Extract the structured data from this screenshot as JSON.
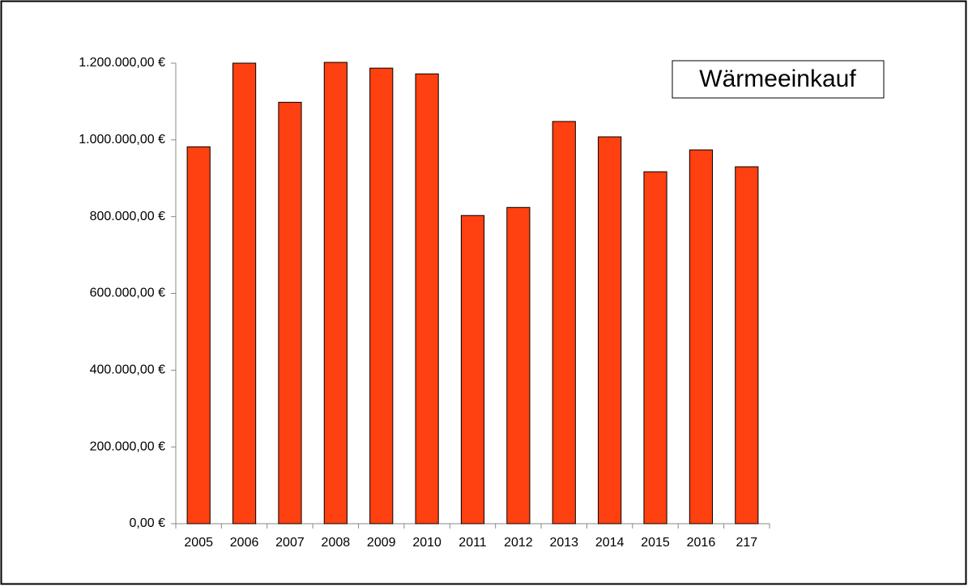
{
  "chart_data": {
    "type": "bar",
    "title": "Wärmeeinkauf",
    "categories": [
      "2005",
      "2006",
      "2007",
      "2008",
      "2009",
      "2010",
      "2011",
      "2012",
      "2013",
      "2014",
      "2015",
      "2016",
      "217"
    ],
    "values": [
      982000,
      1200000,
      1098000,
      1202000,
      1187000,
      1172000,
      803000,
      824000,
      1048000,
      1008000,
      917000,
      974000,
      930000
    ],
    "color": "#ff4010",
    "ylim": [
      0,
      1200000
    ],
    "yticks": [
      {
        "value": 0,
        "label": "0,00 €"
      },
      {
        "value": 200000,
        "label": "200.000,00 €"
      },
      {
        "value": 400000,
        "label": "400.000,00 €"
      },
      {
        "value": 600000,
        "label": "600.000,00 €"
      },
      {
        "value": 800000,
        "label": "800.000,00 €"
      },
      {
        "value": 1000000,
        "label": "1.000.000,00 €"
      },
      {
        "value": 1200000,
        "label": "1.200.000,00 €"
      }
    ],
    "grid": false
  }
}
